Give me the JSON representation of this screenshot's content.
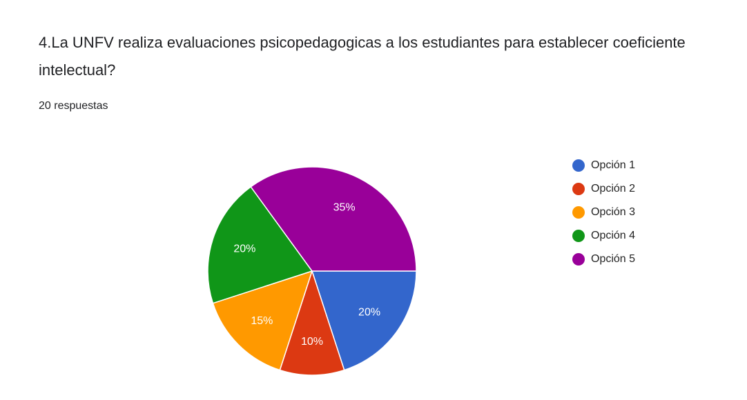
{
  "chart_data": {
    "type": "pie",
    "title": "4.La UNFV realiza evaluaciones psicopedagogicas a los estudiantes para establecer coeficiente intelectual?",
    "subtitle": "20 respuestas",
    "categories": [
      "Opción 1",
      "Opción 2",
      "Opción 3",
      "Opción 4",
      "Opción 5"
    ],
    "values": [
      20,
      10,
      15,
      20,
      35
    ],
    "value_labels": [
      "20%",
      "10%",
      "15%",
      "20%",
      "35%"
    ],
    "colors": [
      "#3366cc",
      "#dc3912",
      "#ff9900",
      "#109618",
      "#990099"
    ],
    "legend": "right"
  }
}
